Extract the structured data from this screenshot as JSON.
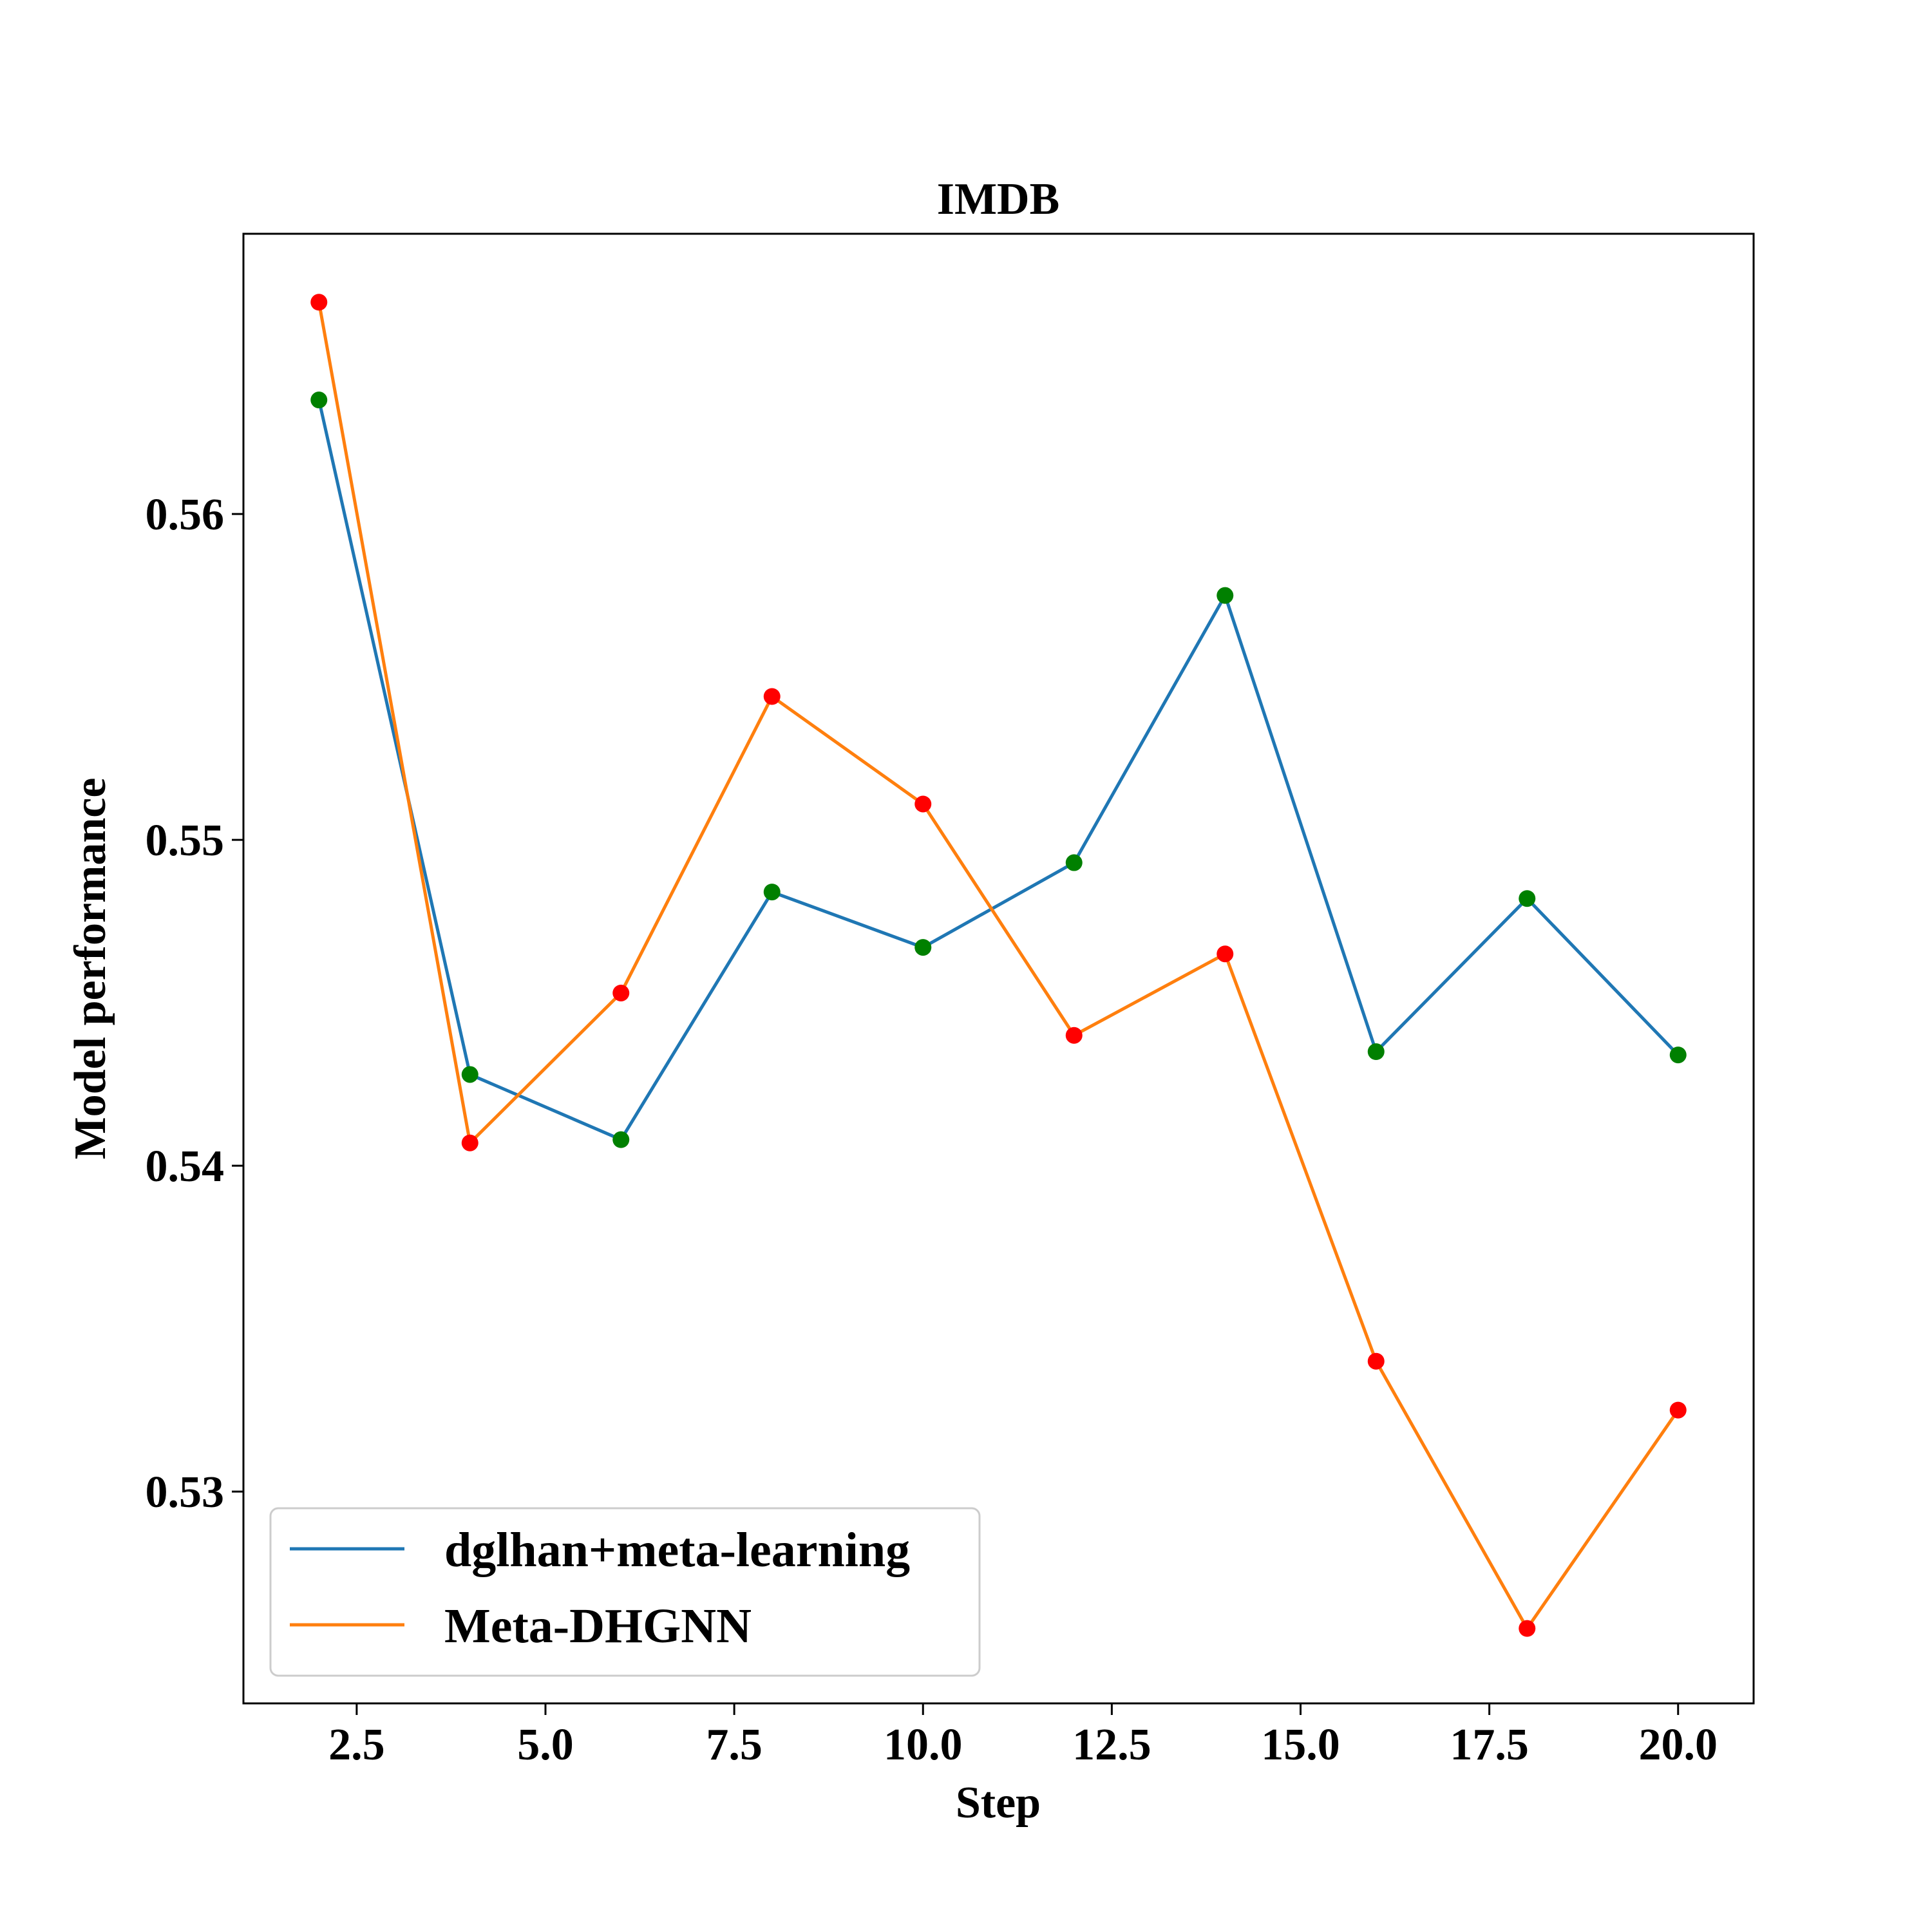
{
  "chart_data": {
    "type": "line",
    "title": "IMDB",
    "xlabel": "Step",
    "ylabel": "Model performance",
    "xlim": [
      1.0,
      21.0
    ],
    "ylim": [
      0.5235,
      0.5686
    ],
    "x_ticks": [
      2.5,
      5.0,
      7.5,
      10.0,
      12.5,
      15.0,
      17.5,
      20.0
    ],
    "x_tick_labels": [
      "2.5",
      "5.0",
      "7.5",
      "10.0",
      "12.5",
      "15.0",
      "17.5",
      "20.0"
    ],
    "y_ticks": [
      0.53,
      0.54,
      0.55,
      0.56
    ],
    "y_tick_labels": [
      "0.53",
      "0.54",
      "0.55",
      "0.56"
    ],
    "grid": false,
    "legend_position": "lower-left",
    "x": [
      2,
      4,
      6,
      8,
      10,
      12,
      14,
      16,
      18,
      20
    ],
    "series": [
      {
        "name": "dglhan+meta-learning",
        "color": "#1f77b4",
        "marker_color": "#008000",
        "values": [
          0.5635,
          0.5428,
          0.5408,
          0.5484,
          0.5467,
          0.5493,
          0.5575,
          0.5435,
          0.5482,
          0.5434
        ]
      },
      {
        "name": "Meta-DHGNN",
        "color": "#ff7f0e",
        "marker_color": "#ff0000",
        "values": [
          0.5665,
          0.5407,
          0.5453,
          0.5544,
          0.5511,
          0.544,
          0.5465,
          0.534,
          0.5258,
          0.5325
        ]
      }
    ]
  }
}
